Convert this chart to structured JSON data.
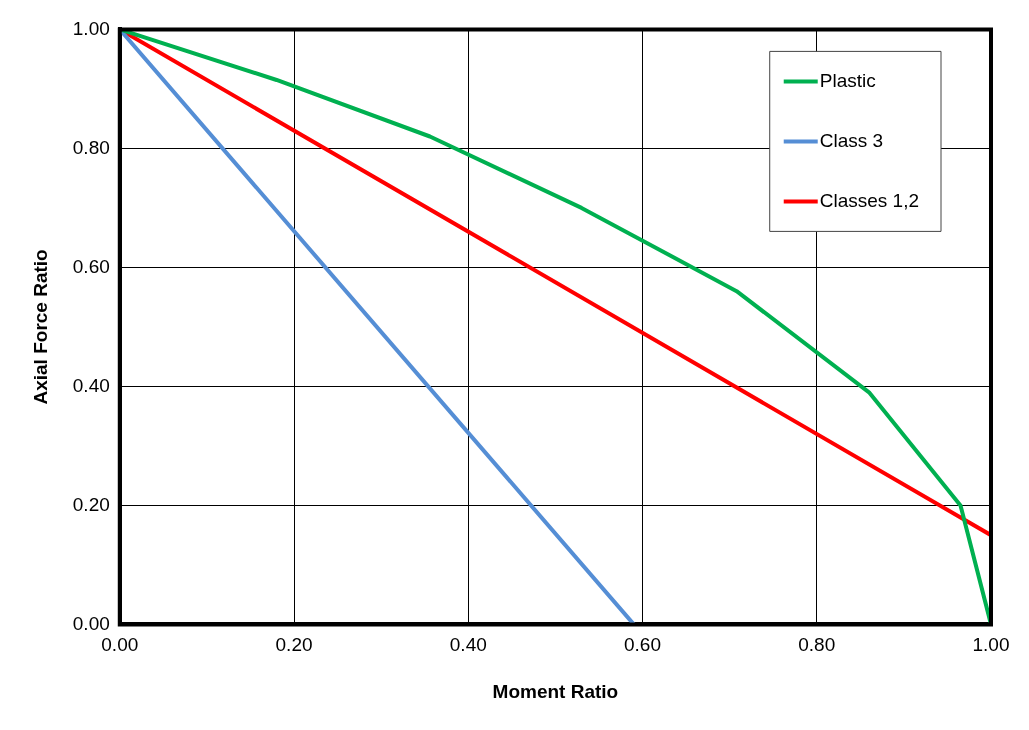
{
  "chart_data": {
    "type": "line",
    "xlabel": "Moment Ratio",
    "ylabel": "Axial Force Ratio",
    "xlim": [
      0,
      1
    ],
    "ylim": [
      0,
      1
    ],
    "xticks": [
      {
        "value": 0,
        "label": "0.00"
      },
      {
        "value": 0.2,
        "label": "0.20"
      },
      {
        "value": 0.4,
        "label": "0.40"
      },
      {
        "value": 0.6,
        "label": "0.60"
      },
      {
        "value": 0.8,
        "label": "0.80"
      },
      {
        "value": 1,
        "label": "1.00"
      }
    ],
    "yticks": [
      {
        "value": 0,
        "label": "0.00"
      },
      {
        "value": 0.2,
        "label": "0.20"
      },
      {
        "value": 0.4,
        "label": "0.40"
      },
      {
        "value": 0.6,
        "label": "0.60"
      },
      {
        "value": 0.8,
        "label": "0.80"
      },
      {
        "value": 1,
        "label": "1.00"
      }
    ],
    "grid": true,
    "legend": "top right",
    "marker": "none",
    "line_style": "solid",
    "series": [
      {
        "name": "Plastic",
        "color": "#00b050",
        "x": [
          0,
          0.18,
          0.356,
          0.53,
          0.708,
          0.86,
          0.965,
          1
        ],
        "values": [
          1,
          0.915,
          0.82,
          0.7,
          0.56,
          0.39,
          0.2,
          0
        ]
      },
      {
        "name": "Class 3",
        "color": "#558ed5",
        "x": [
          0,
          0.59
        ],
        "values": [
          1,
          0
        ]
      },
      {
        "name": "Classes 1,2",
        "color": "#ff0000",
        "x": [
          0,
          1,
          1
        ],
        "values": [
          1,
          0.15,
          0
        ]
      }
    ]
  }
}
